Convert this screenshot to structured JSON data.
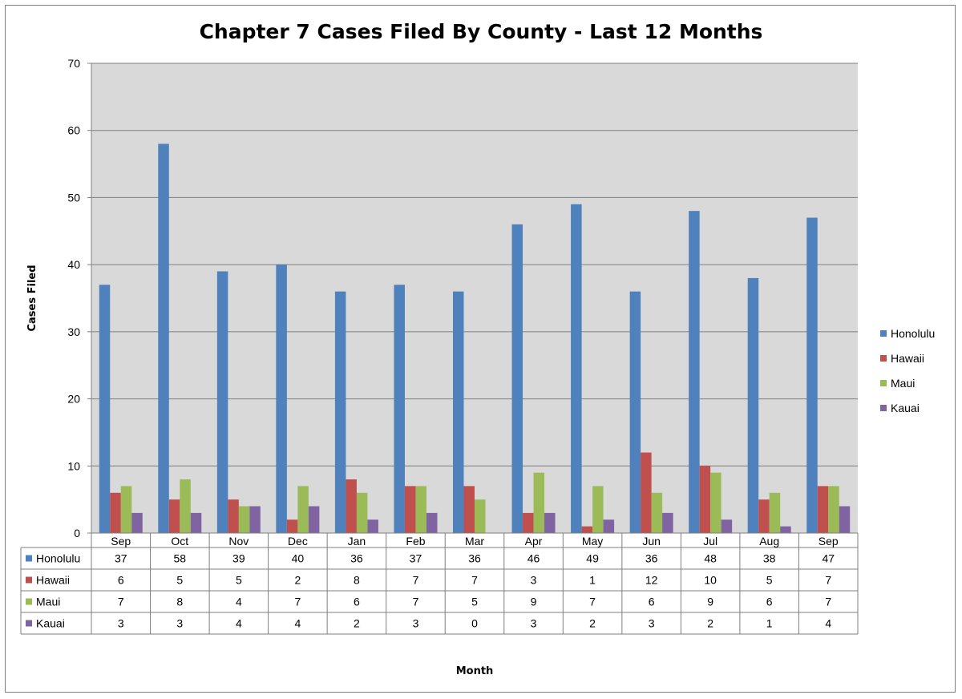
{
  "chart_data": {
    "type": "bar",
    "title": "Chapter 7 Cases Filed By County - Last 12 Months",
    "xlabel": "Month",
    "ylabel": "Cases Filed",
    "ylim": [
      0,
      70
    ],
    "yticks": [
      0,
      10,
      20,
      30,
      40,
      50,
      60,
      70
    ],
    "grid": true,
    "legend_position": "right",
    "data_table": true,
    "categories": [
      "Sep",
      "Oct",
      "Nov",
      "Dec",
      "Jan",
      "Feb",
      "Mar",
      "Apr",
      "May",
      "Jun",
      "Jul",
      "Aug",
      "Sep"
    ],
    "series": [
      {
        "name": "Honolulu",
        "color": "#4f81bd",
        "values": [
          37,
          58,
          39,
          40,
          36,
          37,
          36,
          46,
          49,
          36,
          48,
          38,
          47
        ]
      },
      {
        "name": "Hawaii",
        "color": "#c0504d",
        "values": [
          6,
          5,
          5,
          2,
          8,
          7,
          7,
          3,
          1,
          12,
          10,
          5,
          7
        ]
      },
      {
        "name": "Maui",
        "color": "#9bbb59",
        "values": [
          7,
          8,
          4,
          7,
          6,
          7,
          5,
          9,
          7,
          6,
          9,
          6,
          7
        ]
      },
      {
        "name": "Kauai",
        "color": "#8064a2",
        "values": [
          3,
          3,
          4,
          4,
          2,
          3,
          0,
          3,
          2,
          3,
          2,
          1,
          4
        ]
      }
    ],
    "plot_background": "#d9d9d9",
    "gridline_color": "#7f7f7f"
  }
}
